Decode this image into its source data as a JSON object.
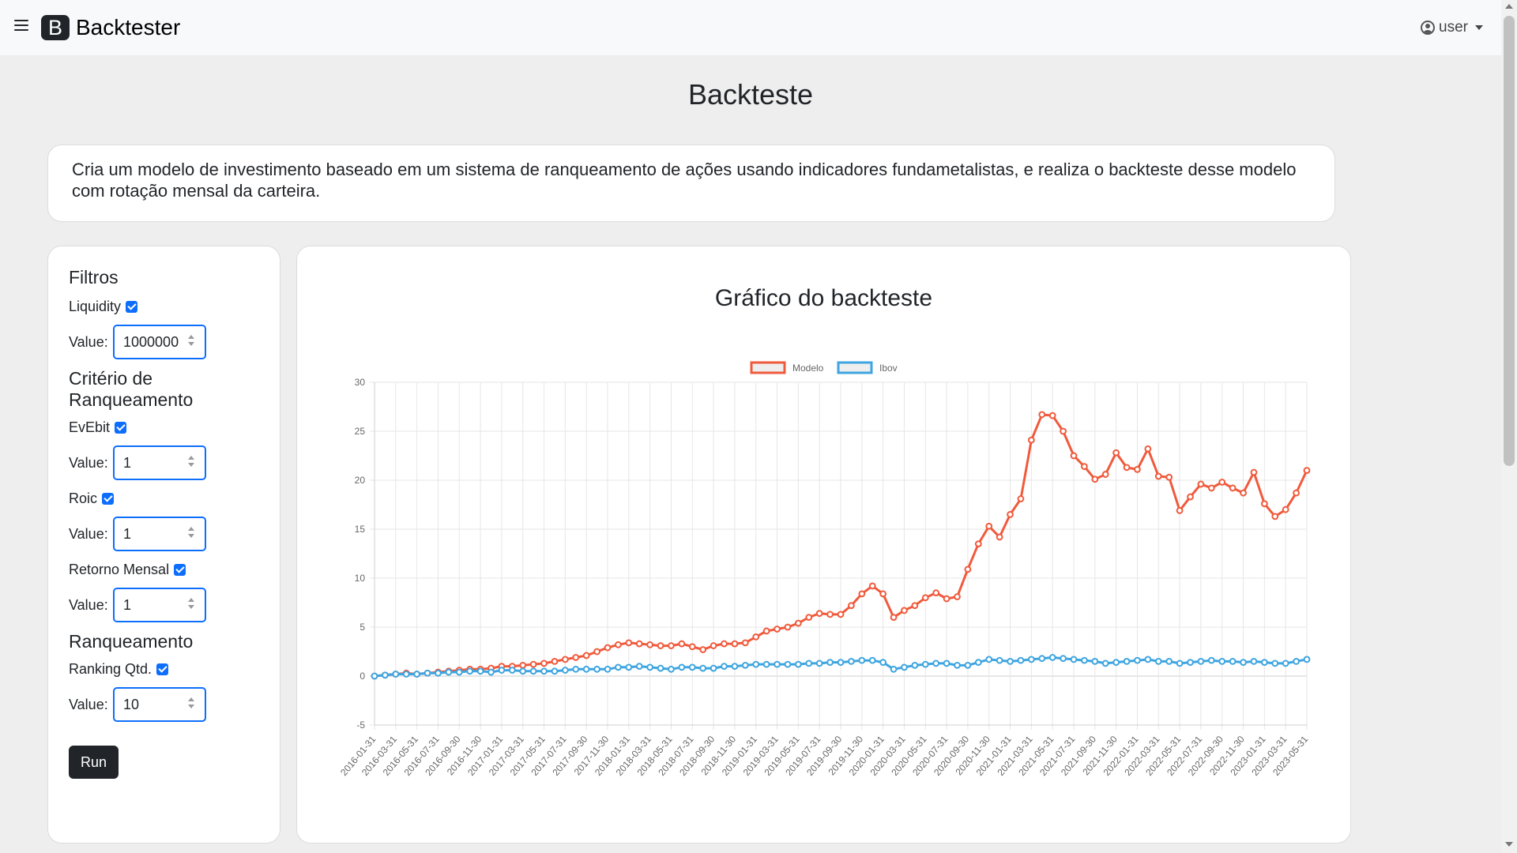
{
  "navbar": {
    "menu_icon": "hamburger-menu-icon",
    "logo_letter": "B",
    "brand": "Backtester",
    "user_icon": "user-circle-icon",
    "user_label": "user"
  },
  "page": {
    "title": "Backteste",
    "description": "Cria um modelo de investimento baseado em um sistema de ranqueamento de ações usando indicadores fundametalistas, e realiza o backteste desse modelo com rotação mensal da carteira."
  },
  "filters": {
    "section_filtros": "Filtros",
    "liquidity_label": "Liquidity",
    "liquidity_value": "1000000",
    "section_criterio": "Critério de Ranqueamento",
    "evebit_label": "EvEbit",
    "evebit_value": "1",
    "roic_label": "Roic",
    "roic_value": "1",
    "retorno_label": "Retorno Mensal",
    "retorno_value": "1",
    "section_ranqueamento": "Ranqueamento",
    "ranking_label": "Ranking Qtd.",
    "ranking_value": "10",
    "value_label": "Value:",
    "run_label": "Run"
  },
  "colors": {
    "modelo": "#f05a3c",
    "ibov": "#3ea5e0",
    "checkbox": "#0d6efd"
  },
  "chart_data": {
    "type": "line",
    "title": "Gráfico do backteste",
    "xlabel": "",
    "ylabel": "",
    "ylim": [
      -5,
      30
    ],
    "yticks": [
      -5,
      0,
      5,
      10,
      15,
      20,
      25,
      30
    ],
    "grid": true,
    "legend_position": "top",
    "x_start": "2016-01-31",
    "x_tick_labels": [
      "2016-01-31",
      "2016-03-31",
      "2016-05-31",
      "2016-07-31",
      "2016-09-30",
      "2016-11-30",
      "2017-01-31",
      "2017-03-31",
      "2017-05-31",
      "2017-07-31",
      "2017-09-30",
      "2017-11-30",
      "2018-01-31",
      "2018-03-31",
      "2018-05-31",
      "2018-07-31",
      "2018-09-30",
      "2018-11-30",
      "2019-01-31",
      "2019-03-31",
      "2019-05-31",
      "2019-07-31",
      "2019-09-30",
      "2019-11-30",
      "2020-01-31",
      "2020-03-31",
      "2020-05-31",
      "2020-07-31",
      "2020-09-30",
      "2020-11-30",
      "2021-01-31",
      "2021-03-31",
      "2021-05-31",
      "2021-07-31",
      "2021-09-30",
      "2021-11-30",
      "2022-01-31",
      "2022-03-31",
      "2022-05-31",
      "2022-07-31",
      "2022-09-30",
      "2022-11-30",
      "2023-01-31",
      "2023-03-31",
      "2023-05-31"
    ],
    "series": [
      {
        "name": "Modelo",
        "color": "#f05a3c",
        "values": [
          0,
          0.1,
          0.2,
          0.3,
          0.2,
          0.3,
          0.4,
          0.5,
          0.6,
          0.7,
          0.7,
          0.8,
          1,
          1,
          1.1,
          1.2,
          1.3,
          1.5,
          1.7,
          1.9,
          2.1,
          2.5,
          2.9,
          3.2,
          3.4,
          3.3,
          3.2,
          3.1,
          3.1,
          3.3,
          3.0,
          2.7,
          3.1,
          3.3,
          3.3,
          3.4,
          4.0,
          4.6,
          4.8,
          5.0,
          5.4,
          6.0,
          6.4,
          6.3,
          6.3,
          7.2,
          8.4,
          9.2,
          8.4,
          6.0,
          6.7,
          7.2,
          8.0,
          8.5,
          7.9,
          8.1,
          10.9,
          13.5,
          15.3,
          14.2,
          16.5,
          18.1,
          24.1,
          26.7,
          26.6,
          25.0,
          22.5,
          21.4,
          20.1,
          20.6,
          22.8,
          21.3,
          21.1,
          23.2,
          20.4,
          20.3,
          16.9,
          18.3,
          19.6,
          19.2,
          19.8,
          19.2,
          18.7,
          20.8,
          17.6,
          16.3,
          17.0,
          18.7,
          21.0
        ]
      },
      {
        "name": "Ibov",
        "color": "#3ea5e0",
        "values": [
          0,
          0.1,
          0.2,
          0.2,
          0.2,
          0.3,
          0.3,
          0.4,
          0.4,
          0.5,
          0.5,
          0.4,
          0.6,
          0.6,
          0.5,
          0.5,
          0.5,
          0.5,
          0.6,
          0.7,
          0.7,
          0.7,
          0.7,
          0.9,
          0.9,
          1.0,
          0.9,
          0.8,
          0.7,
          0.9,
          0.9,
          0.8,
          0.8,
          1.0,
          1.0,
          1.1,
          1.2,
          1.2,
          1.2,
          1.2,
          1.2,
          1.3,
          1.3,
          1.4,
          1.4,
          1.5,
          1.6,
          1.6,
          1.4,
          0.7,
          0.9,
          1.1,
          1.2,
          1.3,
          1.3,
          1.1,
          1.1,
          1.4,
          1.7,
          1.6,
          1.5,
          1.6,
          1.7,
          1.8,
          1.9,
          1.8,
          1.7,
          1.6,
          1.5,
          1.3,
          1.4,
          1.5,
          1.6,
          1.7,
          1.5,
          1.5,
          1.3,
          1.4,
          1.5,
          1.6,
          1.5,
          1.5,
          1.4,
          1.5,
          1.4,
          1.3,
          1.3,
          1.5,
          1.7
        ]
      }
    ]
  }
}
